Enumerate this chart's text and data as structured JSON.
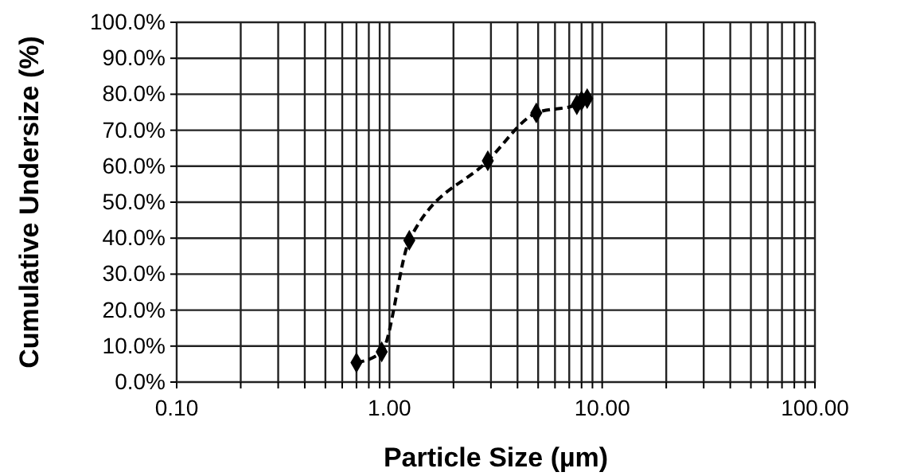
{
  "chart_data": {
    "type": "line",
    "xlabel": "Particle Size (µm)",
    "ylabel": "Cumulative Undersize (%)",
    "log": "x",
    "xlim": [
      0.1,
      100
    ],
    "ylim": [
      0,
      100
    ],
    "xticks": [
      {
        "value": 0.1,
        "label": "0.10"
      },
      {
        "value": 0.2,
        "label": null
      },
      {
        "value": 0.3,
        "label": null
      },
      {
        "value": 0.4,
        "label": null
      },
      {
        "value": 0.5,
        "label": null
      },
      {
        "value": 0.6,
        "label": null
      },
      {
        "value": 0.7,
        "label": null
      },
      {
        "value": 0.8,
        "label": null
      },
      {
        "value": 0.9,
        "label": null
      },
      {
        "value": 1,
        "label": "1.00"
      },
      {
        "value": 2,
        "label": null
      },
      {
        "value": 3,
        "label": null
      },
      {
        "value": 4,
        "label": null
      },
      {
        "value": 5,
        "label": null
      },
      {
        "value": 6,
        "label": null
      },
      {
        "value": 7,
        "label": null
      },
      {
        "value": 8,
        "label": null
      },
      {
        "value": 9,
        "label": null
      },
      {
        "value": 10,
        "label": "10.00"
      },
      {
        "value": 20,
        "label": null
      },
      {
        "value": 30,
        "label": null
      },
      {
        "value": 40,
        "label": null
      },
      {
        "value": 50,
        "label": null
      },
      {
        "value": 60,
        "label": null
      },
      {
        "value": 70,
        "label": null
      },
      {
        "value": 80,
        "label": null
      },
      {
        "value": 90,
        "label": null
      },
      {
        "value": 100,
        "label": "100.00"
      }
    ],
    "yticks": [
      {
        "value": 0,
        "label": "0.0%"
      },
      {
        "value": 10,
        "label": "10.0%"
      },
      {
        "value": 20,
        "label": "20.0%"
      },
      {
        "value": 30,
        "label": "30.0%"
      },
      {
        "value": 40,
        "label": "40.0%"
      },
      {
        "value": 50,
        "label": "50.0%"
      },
      {
        "value": 60,
        "label": "60.0%"
      },
      {
        "value": 70,
        "label": "70.0%"
      },
      {
        "value": 80,
        "label": "80.0%"
      },
      {
        "value": 90,
        "label": "90.0%"
      },
      {
        "value": 100,
        "label": "100.0%"
      }
    ],
    "grid": true,
    "marker": "diamond",
    "line_style": "dashed",
    "x": [
      0.7,
      0.92,
      1.24,
      2.9,
      4.9,
      7.6,
      8.0,
      8.5
    ],
    "series": [
      {
        "color": "#000000",
        "values": [
          5.4,
          8.4,
          39.4,
          61.5,
          74.8,
          77.1,
          78.2,
          78.8
        ]
      }
    ]
  }
}
